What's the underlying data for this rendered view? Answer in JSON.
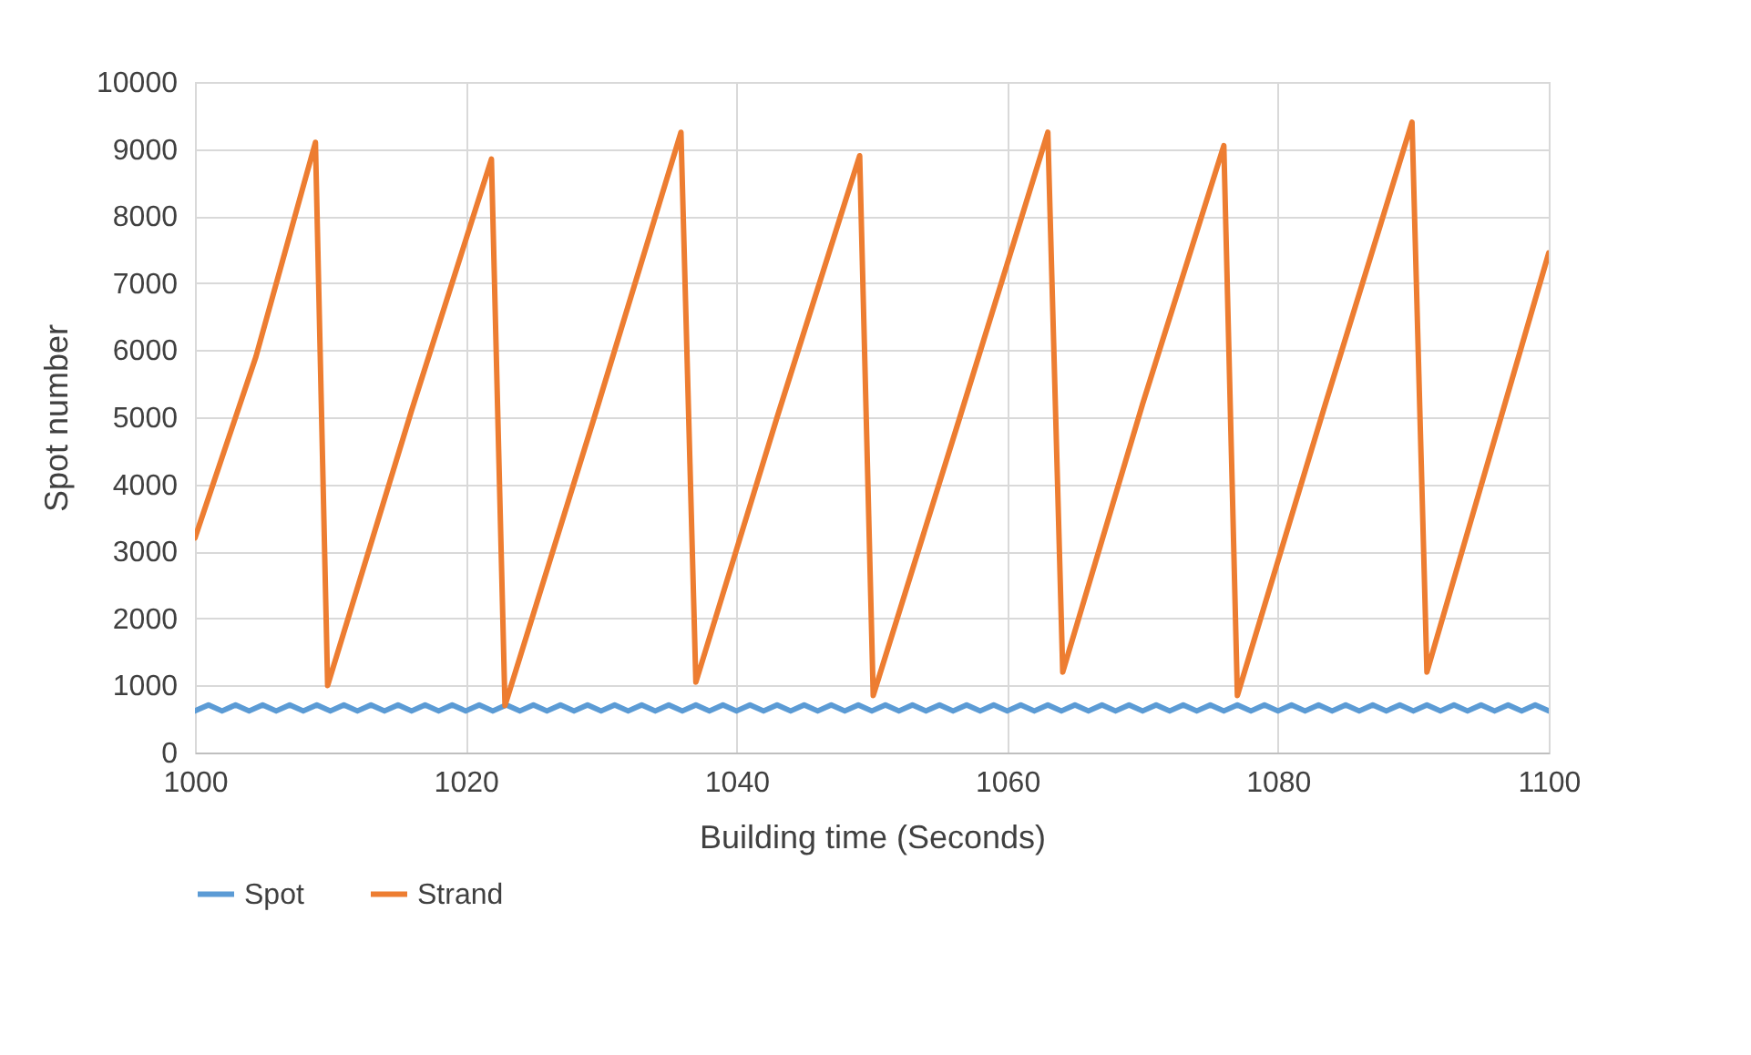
{
  "chart_data": {
    "type": "line",
    "xlabel": "Building time (Seconds)",
    "ylabel": "Spot number",
    "xlim": [
      1000,
      1100
    ],
    "xticks": [
      1000,
      1020,
      1040,
      1060,
      1080,
      1100
    ],
    "ylim": [
      0,
      10000
    ],
    "yticks": [
      0,
      1000,
      2000,
      3000,
      4000,
      5000,
      6000,
      7000,
      8000,
      9000,
      10000
    ],
    "grid": true,
    "legend": "bottom",
    "series": [
      {
        "name": "Spot",
        "color": "#5b9bd5",
        "x": [
          1000,
          1001,
          1002,
          1003,
          1004,
          1005,
          1006,
          1007,
          1008,
          1009,
          1010,
          1011,
          1012,
          1013,
          1014,
          1015,
          1016,
          1017,
          1018,
          1019,
          1020,
          1021,
          1022,
          1023,
          1024,
          1025,
          1026,
          1027,
          1028,
          1029,
          1030,
          1031,
          1032,
          1033,
          1034,
          1035,
          1036,
          1037,
          1038,
          1039,
          1040,
          1041,
          1042,
          1043,
          1044,
          1045,
          1046,
          1047,
          1048,
          1049,
          1050,
          1051,
          1052,
          1053,
          1054,
          1055,
          1056,
          1057,
          1058,
          1059,
          1060,
          1061,
          1062,
          1063,
          1064,
          1065,
          1066,
          1067,
          1068,
          1069,
          1070,
          1071,
          1072,
          1073,
          1074,
          1075,
          1076,
          1077,
          1078,
          1079,
          1080,
          1081,
          1082,
          1083,
          1084,
          1085,
          1086,
          1087,
          1088,
          1089,
          1090,
          1091,
          1092,
          1093,
          1094,
          1095,
          1096,
          1097,
          1098,
          1099,
          1100
        ],
        "values": [
          620,
          710,
          620,
          710,
          620,
          710,
          620,
          710,
          620,
          710,
          620,
          710,
          620,
          710,
          620,
          710,
          620,
          710,
          620,
          710,
          620,
          710,
          620,
          710,
          620,
          710,
          620,
          710,
          620,
          710,
          620,
          710,
          620,
          710,
          620,
          710,
          620,
          710,
          620,
          710,
          620,
          710,
          620,
          710,
          620,
          710,
          620,
          710,
          620,
          710,
          620,
          710,
          620,
          710,
          620,
          710,
          620,
          710,
          620,
          710,
          620,
          710,
          620,
          710,
          620,
          710,
          620,
          710,
          620,
          710,
          620,
          710,
          620,
          710,
          620,
          710,
          620,
          710,
          620,
          710,
          620,
          710,
          620,
          710,
          620,
          710,
          620,
          710,
          620,
          710,
          620,
          710,
          620,
          710,
          620,
          710,
          620,
          710,
          620,
          710,
          620
        ]
      },
      {
        "name": "Strand",
        "color": "#ed7d31",
        "x": [
          1000,
          1004.5,
          1008.9,
          1009.8,
          1016,
          1021.9,
          1022.9,
          1029.5,
          1035.9,
          1037,
          1043,
          1049.1,
          1050.1,
          1056.5,
          1063,
          1064.1,
          1070,
          1076,
          1077,
          1083.5,
          1089.9,
          1091,
          1100
        ],
        "values": [
          3200,
          5900,
          9100,
          1000,
          5100,
          8850,
          700,
          5000,
          9250,
          1050,
          5000,
          8900,
          850,
          5000,
          9250,
          1200,
          5200,
          9050,
          850,
          5200,
          9400,
          1200,
          7450
        ]
      }
    ]
  }
}
